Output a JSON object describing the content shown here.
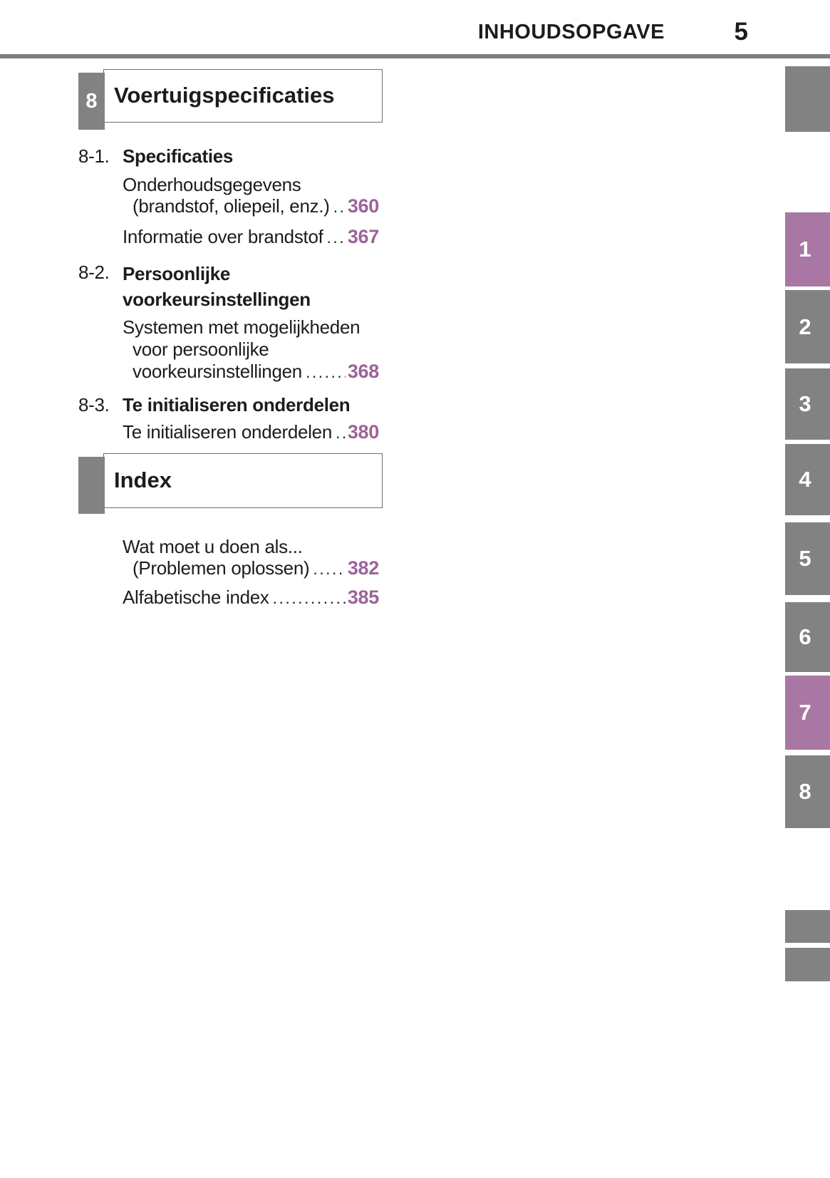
{
  "header": {
    "title": "INHOUDSOPGAVE",
    "page_number": "5"
  },
  "chapter_box": {
    "number": "8",
    "title": "Voertuigspecificaties"
  },
  "sections": [
    {
      "number": "8-1.",
      "title": "Specificaties",
      "entries": [
        {
          "line1": "Onderhoudsgegevens",
          "leader_text": "(brandstof, oliepeil, enz.)",
          "page": "360"
        },
        {
          "leader_text": "Informatie over brandstof",
          "page": "367"
        }
      ]
    },
    {
      "number": "8-2.",
      "title_line1": "Persoonlijke",
      "title_line2": "voorkeursinstellingen",
      "entries": [
        {
          "line1": "Systemen met mogelijkheden",
          "line2": "voor persoonlijke",
          "leader_text": "voorkeursinstellingen",
          "page": "368"
        }
      ]
    },
    {
      "number": "8-3.",
      "title": "Te initialiseren onderdelen",
      "entries": [
        {
          "leader_text": "Te initialiseren onderdelen",
          "page": "380"
        }
      ]
    }
  ],
  "index_section": {
    "title": "Index",
    "entries": [
      {
        "line1": "Wat moet u doen als...",
        "leader_text": "(Problemen oplossen)",
        "page": "382"
      },
      {
        "leader_text": "Alfabetische index",
        "page": "385"
      }
    ]
  },
  "side_tabs": [
    {
      "label": "",
      "highlighted": false
    },
    {
      "label": "1",
      "highlighted": true
    },
    {
      "label": "2",
      "highlighted": false
    },
    {
      "label": "3",
      "highlighted": false
    },
    {
      "label": "4",
      "highlighted": false
    },
    {
      "label": "5",
      "highlighted": false
    },
    {
      "label": "6",
      "highlighted": false
    },
    {
      "label": "7",
      "highlighted": true
    },
    {
      "label": "8",
      "highlighted": false
    },
    {
      "label": "",
      "highlighted": false
    },
    {
      "label": "",
      "highlighted": false
    }
  ],
  "colors": {
    "tab_gray": "#828282",
    "tab_purple": "#a877a3",
    "page_number_purple": "#9c639b"
  }
}
